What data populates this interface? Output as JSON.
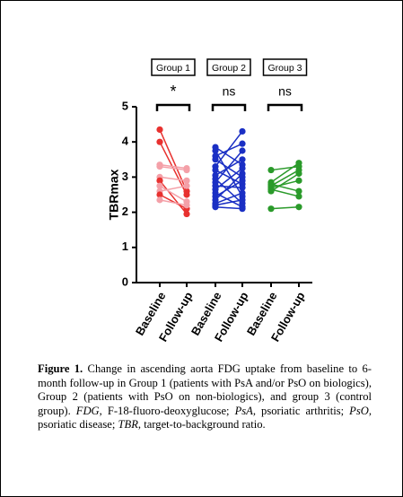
{
  "chart_data": {
    "type": "paired",
    "y_label": "TBRmax",
    "categories": [
      "Baseline",
      "Follow-up",
      "Baseline",
      "Follow-up",
      "Baseline",
      "Follow-up"
    ],
    "ylim": [
      0,
      5
    ],
    "yticks": [
      0,
      1,
      2,
      3,
      4,
      5
    ],
    "series": [
      {
        "name": "Group 1",
        "annotation": "*",
        "color": [
          "#e8312f",
          "#e8312f",
          "#f4a0a8",
          "#f4a0a8",
          "#f4a0a8",
          "#e8312f",
          "#f4a0a8",
          "#f4a0a8",
          "#e8312f",
          "#f4a0a8"
        ],
        "baseline": [
          4.35,
          4.0,
          3.35,
          3.3,
          3.0,
          2.9,
          2.75,
          2.6,
          2.5,
          2.35
        ],
        "follow_up": [
          2.6,
          2.5,
          3.25,
          3.2,
          2.9,
          1.95,
          2.3,
          2.75,
          2.1,
          2.2
        ]
      },
      {
        "name": "Group 2",
        "annotation": "ns",
        "color": "#1a2fc4",
        "baseline": [
          3.85,
          3.75,
          3.6,
          3.5,
          3.3,
          3.2,
          3.05,
          2.95,
          2.85,
          2.75,
          2.65,
          2.55,
          2.45,
          2.35,
          2.25,
          2.2,
          2.15
        ],
        "follow_up": [
          3.35,
          2.45,
          3.95,
          3.0,
          4.3,
          2.8,
          3.5,
          2.25,
          3.75,
          2.7,
          3.25,
          2.15,
          2.9,
          3.1,
          2.55,
          2.35,
          2.1
        ]
      },
      {
        "name": "Group 3",
        "annotation": "ns",
        "color": "#2a9a2a",
        "baseline": [
          3.2,
          2.85,
          2.8,
          2.75,
          2.7,
          2.65,
          2.6,
          2.1
        ],
        "follow_up": [
          3.3,
          3.4,
          2.6,
          3.2,
          2.9,
          2.45,
          3.1,
          2.15
        ]
      }
    ]
  },
  "caption": [
    "Figure 1.",
    " Change in ascending aorta FDG uptake from baseline to 6-month follow-up in Group 1 (patients with PsA and/or PsO on biologics), Group 2 (patients with PsO on non-biologics), and group 3 (control group). ",
    "FDG",
    ", F-18-fluoro-deoxyglucose; ",
    "PsA",
    ", psoriatic arthritis; ",
    "PsO",
    ", psoriatic disease; ",
    "TBR",
    ", target-to-background ratio."
  ]
}
